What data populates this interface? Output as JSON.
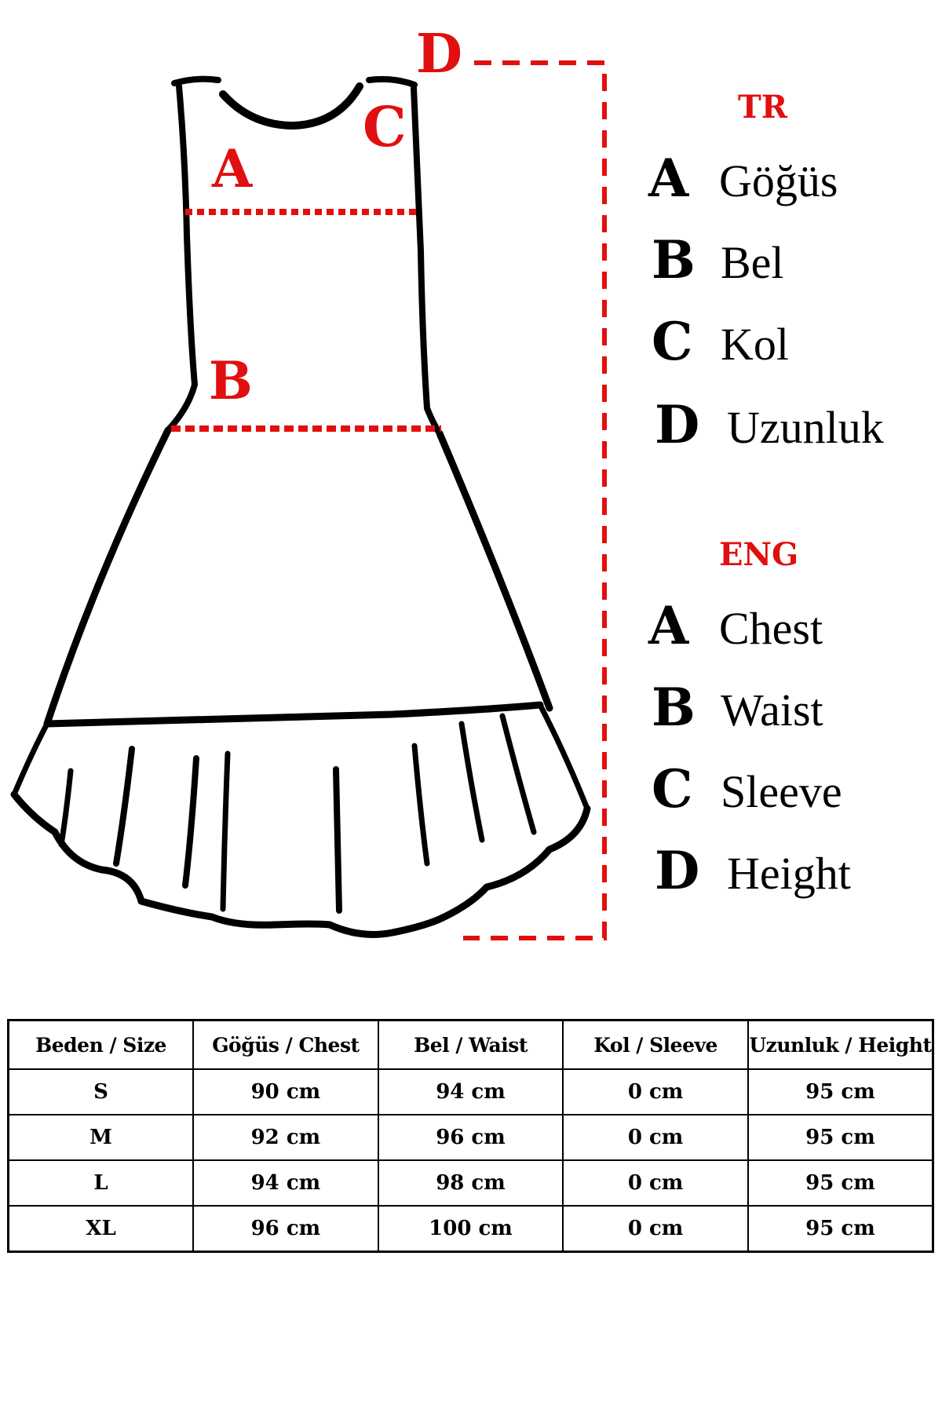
{
  "diagram": {
    "labels": {
      "A": "A",
      "B": "B",
      "C": "C",
      "D": "D"
    },
    "colors": {
      "accent": "#e10f0f",
      "outline": "#000000"
    }
  },
  "legend": {
    "tr": {
      "heading": "TR",
      "items": [
        {
          "letter": "A",
          "word": "Göğüs"
        },
        {
          "letter": "B",
          "word": "Bel"
        },
        {
          "letter": "C",
          "word": "Kol"
        },
        {
          "letter": "D",
          "word": "Uzunluk"
        }
      ]
    },
    "eng": {
      "heading": "ENG",
      "items": [
        {
          "letter": "A",
          "word": "Chest"
        },
        {
          "letter": "B",
          "word": "Waist"
        },
        {
          "letter": "C",
          "word": "Sleeve"
        },
        {
          "letter": "D",
          "word": "Height"
        }
      ]
    }
  },
  "size_table": {
    "headers": [
      "Beden / Size",
      "Göğüs / Chest",
      "Bel / Waist",
      "Kol / Sleeve",
      "Uzunluk / Height"
    ],
    "rows": [
      [
        "S",
        "90 cm",
        "94 cm",
        "0 cm",
        "95 cm"
      ],
      [
        "M",
        "92 cm",
        "96 cm",
        "0 cm",
        "95 cm"
      ],
      [
        "L",
        "94 cm",
        "98 cm",
        "0 cm",
        "95 cm"
      ],
      [
        "XL",
        "96 cm",
        "100 cm",
        "0 cm",
        "95 cm"
      ]
    ]
  }
}
